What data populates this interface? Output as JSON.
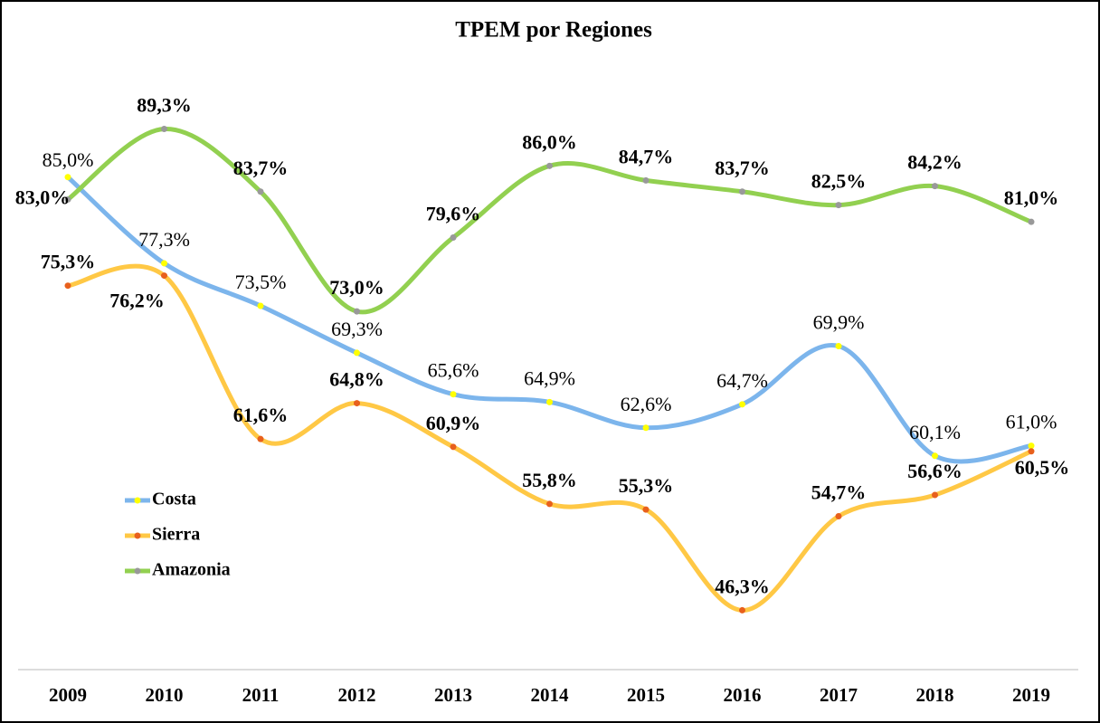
{
  "chart_data": {
    "type": "line",
    "title": "TPEM  por Regiones",
    "categories": [
      "2009",
      "2010",
      "2011",
      "2012",
      "2013",
      "2014",
      "2015",
      "2016",
      "2017",
      "2018",
      "2019"
    ],
    "ylim": [
      41,
      95
    ],
    "series": [
      {
        "name": "Costa",
        "color": "#7cb5ec",
        "marker_color": "#ffff00",
        "values": [
          85.0,
          77.3,
          73.5,
          69.3,
          65.6,
          64.9,
          62.6,
          64.7,
          69.9,
          60.1,
          61.0
        ],
        "value_labels": [
          "85,0%",
          "77,3%",
          "73,5%",
          "69,3%",
          "65,6%",
          "64,9%",
          "62,6%",
          "64,7%",
          "69,9%",
          "60,1%",
          "61,0%"
        ]
      },
      {
        "name": "Sierra",
        "color": "#ffc845",
        "marker_color": "#e8601c",
        "values": [
          75.3,
          76.2,
          61.6,
          64.8,
          60.9,
          55.8,
          55.3,
          46.3,
          54.7,
          56.6,
          60.5
        ],
        "value_labels": [
          "75,3%",
          "76,2%",
          "61,6%",
          "64,8%",
          "60,9%",
          "55,8%",
          "55,3%",
          "46,3%",
          "54,7%",
          "56,6%",
          "60,5%"
        ]
      },
      {
        "name": "Amazonia",
        "color": "#92d050",
        "marker_color": "#999999",
        "values": [
          83.0,
          89.3,
          83.7,
          73.0,
          79.6,
          86.0,
          84.7,
          83.7,
          82.5,
          84.2,
          81.0
        ],
        "value_labels": [
          "83,0%",
          "89,3%",
          "83,7%",
          "73,0%",
          "79,6%",
          "86,0%",
          "84,7%",
          "83,7%",
          "82,5%",
          "84,2%",
          "81,0%"
        ]
      }
    ]
  }
}
